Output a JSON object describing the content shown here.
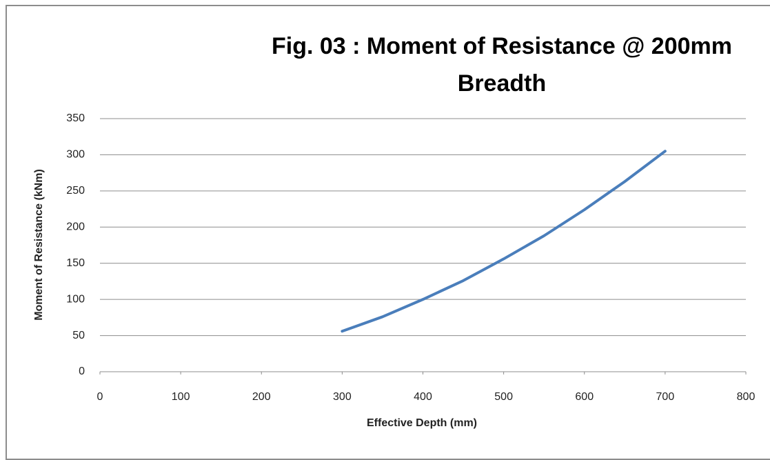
{
  "chart_data": {
    "type": "line",
    "title": "Fig. 03 : Moment of Resistance @ 200mm Breadth",
    "x_label": "Effective Depth (mm)",
    "y_label": "Moment of Resistance (kNm)",
    "x": [
      300,
      350,
      400,
      450,
      500,
      550,
      600,
      650,
      700
    ],
    "series": [
      {
        "name": "Moment of Resistance",
        "color": "#4a7ebb",
        "values": [
          56,
          76,
          100,
          126,
          156,
          188,
          224,
          263,
          305
        ]
      }
    ],
    "xlim": [
      0,
      800
    ],
    "xticks": [
      0,
      100,
      200,
      300,
      400,
      500,
      600,
      700,
      800
    ],
    "ylim": [
      0,
      350
    ],
    "yticks": [
      0,
      50,
      100,
      150,
      200,
      250,
      300,
      350
    ],
    "grid": true
  }
}
